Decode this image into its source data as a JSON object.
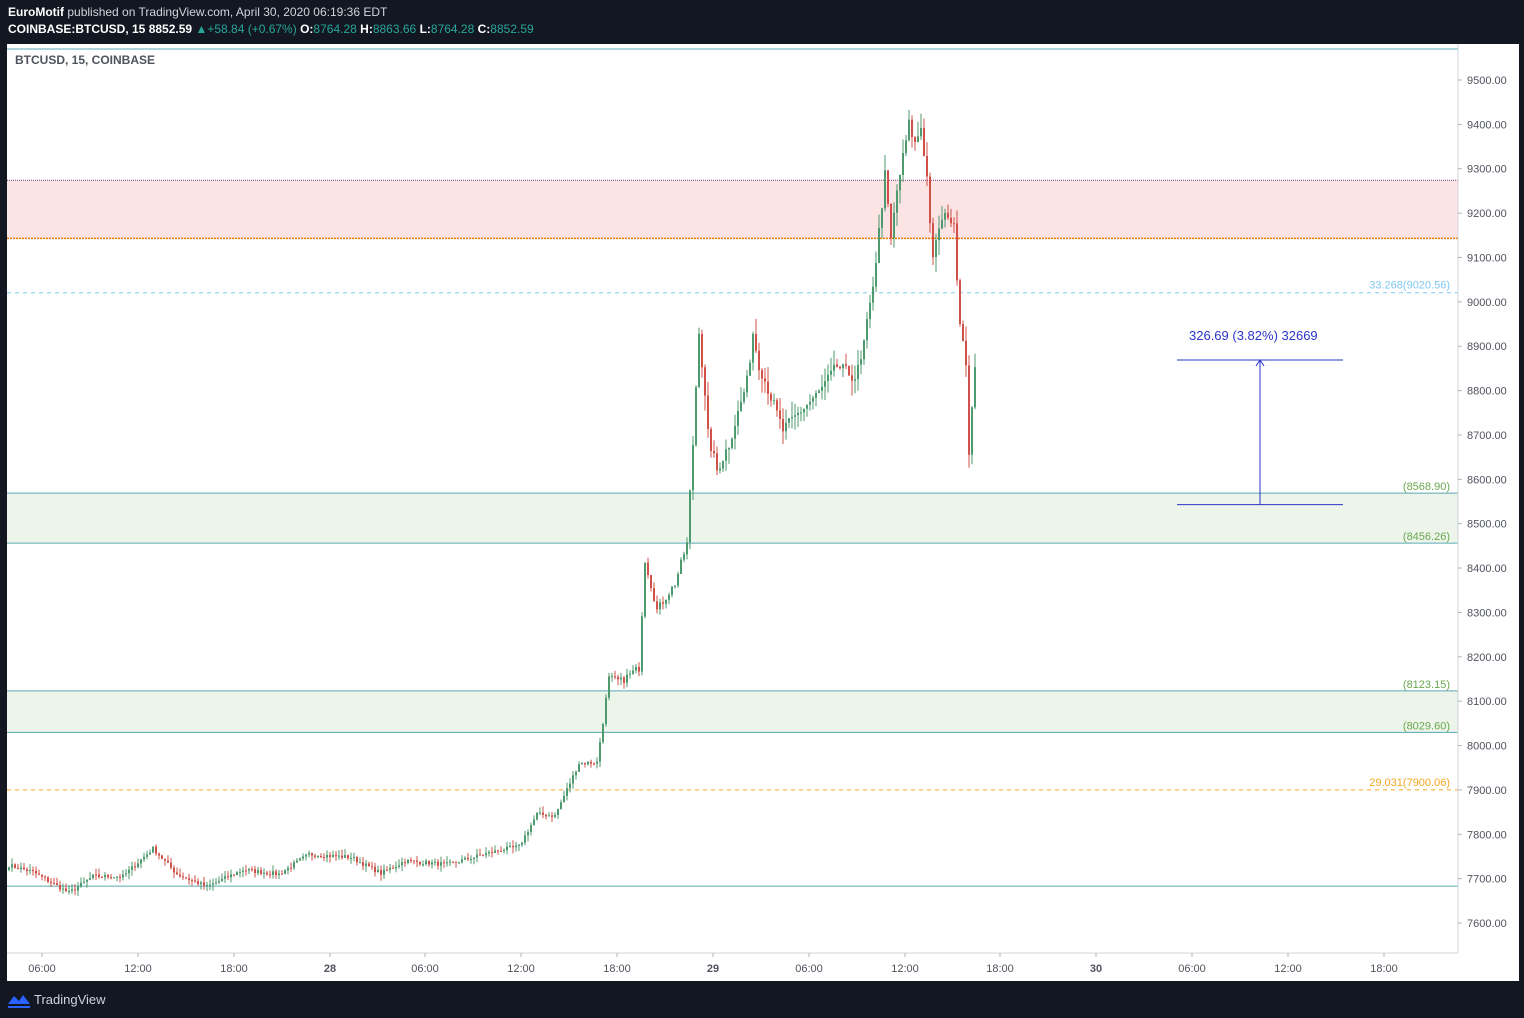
{
  "header": {
    "author": "EuroMotif",
    "published": "published on TradingView.com, April 30, 2020 06:19:36 EDT",
    "symbol": "COINBASE:BTCUSD, 15",
    "last": "8852.59",
    "change": "+58.84 (+0.67%)",
    "open_label": "O:",
    "open": "8764.28",
    "high_label": "H:",
    "high": "8863.66",
    "low_label": "L:",
    "low": "8764.28",
    "close_label": "C:",
    "close": "8852.59"
  },
  "footer": {
    "brand": "TradingView"
  },
  "colors": {
    "up": "#4d9a6e",
    "down": "#d0504a",
    "resistance_zone": "#fce4e4",
    "support_zone": "#edf4ea",
    "fib": "#f5a623",
    "fib_light": "#80c8f0",
    "measure": "#2b34c8",
    "label_green": "#6aa84f"
  },
  "chart_data": {
    "type": "candlestick",
    "title": "BTCUSD, 15, COINBASE",
    "ylim": [
      7540,
      9560
    ],
    "y_ticks": [
      "9500.00",
      "9400.00",
      "9300.00",
      "9200.00",
      "9100.00",
      "9000.00",
      "8900.00",
      "8800.00",
      "8700.00",
      "8600.00",
      "8500.00",
      "8400.00",
      "8300.00",
      "8200.00",
      "8100.00",
      "8000.00",
      "7900.00",
      "7800.00",
      "7700.00",
      "7600.00"
    ],
    "x_ticks": [
      "06:00",
      "12:00",
      "18:00",
      "28",
      "06:00",
      "12:00",
      "18:00",
      "29",
      "06:00",
      "12:00",
      "18:00",
      "30",
      "06:00",
      "12:00",
      "18:00"
    ],
    "zones": [
      {
        "name": "resistance",
        "from": 9143,
        "to": 9274
      },
      {
        "name": "support-1",
        "from": 8456.26,
        "to": 8568.9,
        "label_top": "(8568.90)",
        "label_bottom": "(8456.26)"
      },
      {
        "name": "support-2",
        "from": 8029.6,
        "to": 8123.15,
        "label_top": "(8123.15)",
        "label_bottom": "(8029.60)"
      }
    ],
    "levels": [
      {
        "value": 9570,
        "style": "solid"
      },
      {
        "value": 7683,
        "style": "solid"
      },
      {
        "value": 9020.56,
        "style": "dashed-light",
        "label": "33.268(9020.56)"
      },
      {
        "value": 7900.06,
        "style": "dashed-orange",
        "label": "29.031(7900.06)"
      }
    ],
    "measure": {
      "label": "326.69 (3.82%) 32669",
      "from": 8543,
      "to": 8869
    },
    "anchors": [
      {
        "t": 0,
        "v": 7730
      },
      {
        "t": 8,
        "v": 7715
      },
      {
        "t": 20,
        "v": 7668
      },
      {
        "t": 28,
        "v": 7705
      },
      {
        "t": 38,
        "v": 7705
      },
      {
        "t": 48,
        "v": 7768
      },
      {
        "t": 56,
        "v": 7710
      },
      {
        "t": 66,
        "v": 7682
      },
      {
        "t": 78,
        "v": 7720
      },
      {
        "t": 90,
        "v": 7710
      },
      {
        "t": 100,
        "v": 7755
      },
      {
        "t": 114,
        "v": 7748
      },
      {
        "t": 124,
        "v": 7712
      },
      {
        "t": 132,
        "v": 7740
      },
      {
        "t": 146,
        "v": 7732
      },
      {
        "t": 164,
        "v": 7765
      },
      {
        "t": 170,
        "v": 7772
      },
      {
        "t": 176,
        "v": 7845
      },
      {
        "t": 182,
        "v": 7842
      },
      {
        "t": 190,
        "v": 7960
      },
      {
        "t": 196,
        "v": 7962
      },
      {
        "t": 200,
        "v": 8150
      },
      {
        "t": 204,
        "v": 8145
      },
      {
        "t": 210,
        "v": 8175
      },
      {
        "t": 212,
        "v": 8420
      },
      {
        "t": 216,
        "v": 8305
      },
      {
        "t": 222,
        "v": 8365
      },
      {
        "t": 226,
        "v": 8455
      },
      {
        "t": 228,
        "v": 8680
      },
      {
        "t": 230,
        "v": 8940
      },
      {
        "t": 233,
        "v": 8700
      },
      {
        "t": 236,
        "v": 8620
      },
      {
        "t": 240,
        "v": 8680
      },
      {
        "t": 246,
        "v": 8820
      },
      {
        "t": 248,
        "v": 8930
      },
      {
        "t": 250,
        "v": 8860
      },
      {
        "t": 254,
        "v": 8785
      },
      {
        "t": 258,
        "v": 8710
      },
      {
        "t": 264,
        "v": 8755
      },
      {
        "t": 270,
        "v": 8795
      },
      {
        "t": 276,
        "v": 8855
      },
      {
        "t": 282,
        "v": 8830
      },
      {
        "t": 284,
        "v": 8865
      },
      {
        "t": 287,
        "v": 8990
      },
      {
        "t": 289,
        "v": 9095
      },
      {
        "t": 292,
        "v": 9285
      },
      {
        "t": 294,
        "v": 9140
      },
      {
        "t": 296,
        "v": 9250
      },
      {
        "t": 300,
        "v": 9400
      },
      {
        "t": 302,
        "v": 9355
      },
      {
        "t": 304,
        "v": 9395
      },
      {
        "t": 306,
        "v": 9280
      },
      {
        "t": 308,
        "v": 9090
      },
      {
        "t": 310,
        "v": 9170
      },
      {
        "t": 313,
        "v": 9200
      },
      {
        "t": 315,
        "v": 9165
      },
      {
        "t": 317,
        "v": 8960
      },
      {
        "t": 319,
        "v": 8870
      },
      {
        "t": 320,
        "v": 8650
      },
      {
        "t": 322,
        "v": 8852.59
      }
    ]
  }
}
